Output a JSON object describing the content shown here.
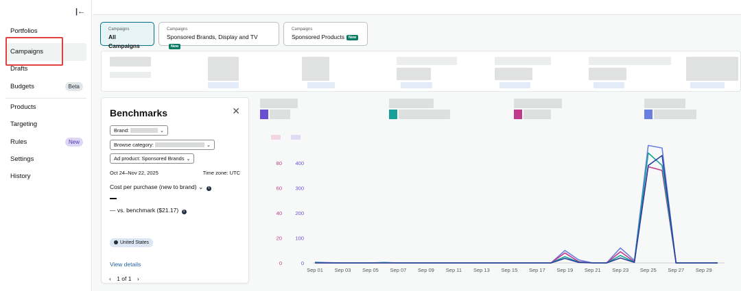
{
  "sidebar": {
    "items": [
      {
        "label": "Portfolios"
      },
      {
        "label": "Campaigns"
      },
      {
        "label": "Drafts"
      },
      {
        "label": "Budgets",
        "badge": "Beta"
      },
      {
        "label": "Products"
      },
      {
        "label": "Targeting"
      },
      {
        "label": "Rules",
        "badge": "New"
      },
      {
        "label": "Settings"
      },
      {
        "label": "History"
      }
    ]
  },
  "tabs": [
    {
      "small": "Campaigns",
      "label": "All Campaigns"
    },
    {
      "small": "Campaigns",
      "label": "Sponsored Brands, Display and TV",
      "tag": "New"
    },
    {
      "small": "Campaigns",
      "label": "Sponsored Products",
      "tag": "New"
    }
  ],
  "benchmarks": {
    "title": "Benchmarks",
    "brand_label": "Brand:",
    "category_label": "Browse category:",
    "ad_product_label": "Ad product: Sponsored Brands",
    "date_range": "Oct 24–Nov 22, 2025",
    "timezone": "Time zone: UTC",
    "metric": "Cost per purchase (new to brand)",
    "vs_benchmark": "— vs. benchmark ($21.17)",
    "location": "United States",
    "view_details": "View details",
    "page_prev": "‹",
    "page": "1 of 1",
    "page_next": "›"
  },
  "chart_data": {
    "type": "line",
    "x": [
      "Sep 01",
      "Sep 02",
      "Sep 03",
      "Sep 04",
      "Sep 05",
      "Sep 06",
      "Sep 07",
      "Sep 08",
      "Sep 09",
      "Sep 10",
      "Sep 11",
      "Sep 12",
      "Sep 13",
      "Sep 14",
      "Sep 15",
      "Sep 16",
      "Sep 17",
      "Sep 18",
      "Sep 19",
      "Sep 20",
      "Sep 21",
      "Sep 22",
      "Sep 23",
      "Sep 24",
      "Sep 25",
      "Sep 26",
      "Sep 27",
      "Sep 28",
      "Sep 29",
      "Sep 30"
    ],
    "x_tick_labels": [
      "Sep 01",
      "Sep 03",
      "Sep 05",
      "Sep 07",
      "Sep 09",
      "Sep 11",
      "Sep 13",
      "Sep 15",
      "Sep 17",
      "Sep 19",
      "Sep 21",
      "Sep 23",
      "Sep 25",
      "Sep 27",
      "Sep 29"
    ],
    "y_left_ticks": [
      "0",
      "20",
      "40",
      "60",
      "80"
    ],
    "y_left_range": [
      0,
      80
    ],
    "y_left_color": "#c0398a",
    "y_right_ticks": [
      "0",
      "100",
      "200",
      "300",
      "400"
    ],
    "y_right_range": [
      0,
      400
    ],
    "y_right_color": "#6a4fd0",
    "grid": false,
    "series": [
      {
        "color": "#6b7fe0",
        "axis": "right",
        "values": [
          3,
          1,
          0,
          0,
          0,
          2,
          0,
          0,
          0,
          0,
          0,
          0,
          0,
          0,
          0,
          0,
          0,
          0,
          50,
          12,
          0,
          0,
          60,
          10,
          470,
          460,
          0,
          0,
          0,
          0
        ]
      },
      {
        "color": "#c0398a",
        "axis": "left",
        "values": [
          0,
          0,
          0,
          0,
          0,
          0,
          0,
          0,
          0,
          0,
          0,
          0,
          0,
          0,
          0,
          0,
          0,
          0,
          8,
          1,
          0,
          0,
          9,
          1,
          77,
          74,
          0,
          0,
          0,
          0
        ]
      },
      {
        "color": "#16a09a",
        "axis": "right",
        "values": [
          1,
          0,
          0,
          0,
          0,
          1,
          0,
          0,
          0,
          0,
          0,
          0,
          0,
          0,
          0,
          0,
          0,
          0,
          25,
          3,
          0,
          0,
          30,
          3,
          440,
          390,
          0,
          0,
          0,
          0
        ]
      },
      {
        "color": "#2b3f9e",
        "axis": "right",
        "values": [
          0,
          0,
          0,
          0,
          0,
          0,
          0,
          0,
          0,
          0,
          0,
          0,
          0,
          0,
          0,
          0,
          0,
          0,
          18,
          2,
          0,
          0,
          20,
          2,
          390,
          430,
          0,
          0,
          0,
          0
        ]
      }
    ]
  }
}
